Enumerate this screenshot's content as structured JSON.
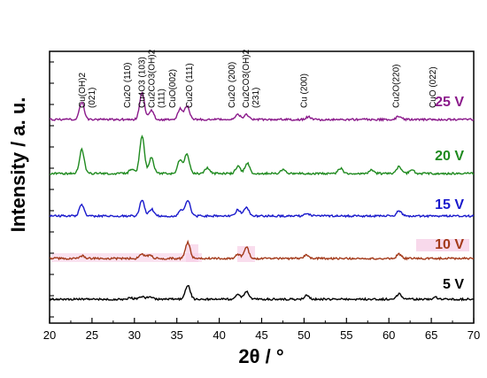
{
  "chart_data": {
    "type": "line",
    "xlabel": "2θ / °",
    "ylabel": "Intensity / a. u.",
    "xlim": [
      20,
      70
    ],
    "xticks": [
      "20",
      "25",
      "30",
      "35",
      "40",
      "45",
      "50",
      "55",
      "60",
      "65",
      "70"
    ],
    "series": [
      {
        "name": "5 V",
        "color": "#000000",
        "peaks": [
          [
            29.5,
            2
          ],
          [
            30.9,
            3
          ],
          [
            31.8,
            3
          ],
          [
            36.3,
            16
          ],
          [
            42.2,
            6
          ],
          [
            43.2,
            9
          ],
          [
            50.3,
            4
          ],
          [
            61.2,
            6
          ],
          [
            65.5,
            2
          ]
        ]
      },
      {
        "name": "10 V",
        "color": "#a33a1a",
        "highlight": "#f6cfe6",
        "peaks": [
          [
            23.8,
            3
          ],
          [
            30.9,
            5
          ],
          [
            31.8,
            4
          ],
          [
            36.3,
            18
          ],
          [
            42.2,
            5
          ],
          [
            43.2,
            13
          ],
          [
            50.3,
            4
          ],
          [
            61.2,
            5
          ]
        ]
      },
      {
        "name": "15 V",
        "color": "#1a1acc",
        "peaks": [
          [
            23.8,
            13
          ],
          [
            30.9,
            18
          ],
          [
            32.0,
            8
          ],
          [
            35.5,
            6
          ],
          [
            36.3,
            18
          ],
          [
            42.2,
            7
          ],
          [
            43.2,
            10
          ],
          [
            50.3,
            3
          ],
          [
            61.2,
            6
          ]
        ]
      },
      {
        "name": "20 V",
        "color": "#1f8a1f",
        "peaks": [
          [
            23.8,
            27
          ],
          [
            29.7,
            5
          ],
          [
            30.9,
            42
          ],
          [
            32.0,
            18
          ],
          [
            35.4,
            16
          ],
          [
            36.2,
            22
          ],
          [
            38.6,
            6
          ],
          [
            42.2,
            8
          ],
          [
            43.3,
            12
          ],
          [
            47.5,
            4
          ],
          [
            54.3,
            6
          ],
          [
            58.0,
            4
          ],
          [
            61.2,
            8
          ],
          [
            62.7,
            4
          ]
        ]
      },
      {
        "name": "25 V",
        "color": "#8b1a8b",
        "peaks": [
          [
            23.8,
            20
          ],
          [
            30.9,
            30
          ],
          [
            32.0,
            10
          ],
          [
            35.4,
            12
          ],
          [
            36.2,
            15
          ],
          [
            42.2,
            6
          ],
          [
            43.2,
            6
          ],
          [
            50.5,
            3
          ],
          [
            61.2,
            4
          ]
        ]
      }
    ],
    "peak_labels": [
      {
        "lines": [
          "Cu(OH)2",
          "(021)"
        ],
        "x": 24.2
      },
      {
        "lines": [
          "Cu2O (110)"
        ],
        "x": 29.5
      },
      {
        "lines": [
          "Cu4O3 (103)",
          "Cu2CO3(OH)2",
          "(111)"
        ],
        "x": 31.2
      },
      {
        "lines": [
          "CuO(002)"
        ],
        "x": 34.8
      },
      {
        "lines": [
          "Cu2O (111)"
        ],
        "x": 36.8
      },
      {
        "lines": [
          "Cu2O (200)"
        ],
        "x": 41.8
      },
      {
        "lines": [
          "Cu2CO3(OH)2",
          "(231)"
        ],
        "x": 43.5
      },
      {
        "lines": [
          "Cu (200)"
        ],
        "x": 50.3
      },
      {
        "lines": [
          "Cu2O(220)"
        ],
        "x": 61.2
      },
      {
        "lines": [
          "CuO (022)"
        ],
        "x": 65.5
      }
    ],
    "grid": false,
    "legend": "inline labels at right of each curve"
  }
}
